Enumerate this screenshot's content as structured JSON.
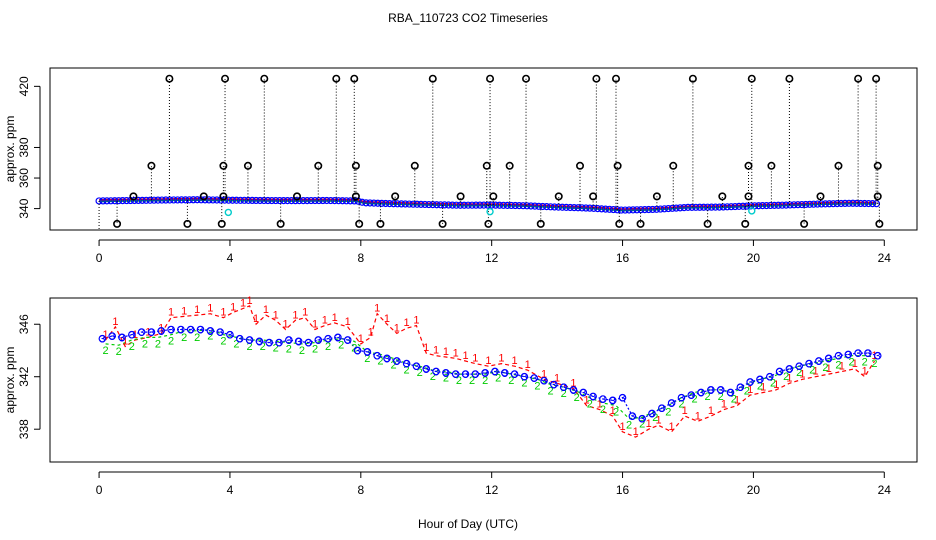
{
  "title": "RBA_110723  CO2 Timeseries",
  "xlabel": "Hour of Day (UTC)",
  "colors": {
    "series1": "#ff0000",
    "series2": "#00cc00",
    "series3": "#0000ff",
    "outlier": "#000000",
    "cyan": "#00cccc"
  },
  "chart_data": [
    {
      "type": "scatter",
      "title": "RBA_110723  CO2 Timeseries",
      "xlabel": "",
      "ylabel": "approx. ppm",
      "xlim": [
        -1.5,
        25
      ],
      "ylim": [
        326,
        432
      ],
      "xticks": [
        0,
        4,
        8,
        12,
        16,
        20,
        24
      ],
      "yticks": [
        340,
        360,
        380,
        420
      ],
      "xtick_labels": [
        "0",
        "4",
        "8",
        "12",
        "16",
        "20",
        "24"
      ],
      "ytick_labels": [
        "340",
        "360",
        "380",
        "420"
      ],
      "baseline": [
        [
          0.0,
          345.0
        ],
        [
          1.0,
          345.3
        ],
        [
          2.0,
          345.6
        ],
        [
          3.0,
          345.8
        ],
        [
          4.0,
          345.5
        ],
        [
          5.0,
          345.3
        ],
        [
          6.0,
          345.2
        ],
        [
          7.0,
          345.3
        ],
        [
          7.9,
          345.0
        ],
        [
          8.1,
          343.8
        ],
        [
          9.0,
          343.2
        ],
        [
          10.0,
          342.7
        ],
        [
          11.0,
          342.2
        ],
        [
          12.0,
          342.3
        ],
        [
          13.0,
          341.9
        ],
        [
          14.0,
          341.0
        ],
        [
          15.0,
          340.3
        ],
        [
          16.0,
          339.0
        ],
        [
          17.0,
          339.5
        ],
        [
          18.0,
          340.8
        ],
        [
          19.0,
          341.0
        ],
        [
          20.0,
          341.8
        ],
        [
          21.0,
          342.3
        ],
        [
          22.0,
          343.0
        ],
        [
          23.0,
          343.5
        ],
        [
          23.8,
          343.2
        ]
      ],
      "outliers_high": [
        2.15,
        3.85,
        5.05,
        7.25,
        7.8,
        10.2,
        11.95,
        13.05,
        15.2,
        15.8,
        18.15,
        19.95,
        21.1,
        23.2,
        23.75
      ],
      "outliers_mid": [
        1.6,
        3.8,
        4.55,
        6.7,
        7.85,
        9.65,
        11.85,
        12.55,
        14.7,
        15.85,
        17.55,
        19.85,
        20.55,
        22.6,
        23.8
      ],
      "outliers_low_mid": [
        1.05,
        3.2,
        3.8,
        6.05,
        7.85,
        9.05,
        11.05,
        12.05,
        14.05,
        15.1,
        17.05,
        19.05,
        19.85,
        22.05,
        23.8
      ],
      "outliers_bottom": [
        0.55,
        2.7,
        3.75,
        5.55,
        7.95,
        8.6,
        10.5,
        11.9,
        13.5,
        15.9,
        16.55,
        18.6,
        19.75,
        21.55,
        23.85
      ],
      "cyan_points": [
        [
          3.95,
          337.5
        ],
        [
          11.95,
          338.0
        ],
        [
          19.95,
          338.5
        ]
      ]
    },
    {
      "type": "scatter",
      "title": "",
      "xlabel": "Hour of Day (UTC)",
      "ylabel": "approx. ppm",
      "xlim": [
        -1.5,
        25
      ],
      "ylim": [
        335.5,
        348.0
      ],
      "xticks": [
        0,
        4,
        8,
        12,
        16,
        20,
        24
      ],
      "yticks": [
        338,
        342,
        346
      ],
      "xtick_labels": [
        "0",
        "4",
        "8",
        "12",
        "16",
        "20",
        "24"
      ],
      "ytick_labels": [
        "338",
        "342",
        "346"
      ],
      "series": [
        {
          "name": "1",
          "marker": "1",
          "color": "#ff0000",
          "points": [
            [
              0.2,
              344.8
            ],
            [
              0.5,
              345.8
            ],
            [
              0.8,
              344.3
            ],
            [
              1.1,
              344.8
            ],
            [
              1.5,
              345.0
            ],
            [
              1.9,
              345.3
            ],
            [
              2.2,
              346.5
            ],
            [
              2.6,
              346.6
            ],
            [
              3.0,
              346.7
            ],
            [
              3.4,
              346.8
            ],
            [
              3.8,
              346.5
            ],
            [
              4.1,
              346.9
            ],
            [
              4.4,
              347.2
            ],
            [
              4.6,
              347.4
            ],
            [
              4.8,
              346.0
            ],
            [
              5.1,
              346.7
            ],
            [
              5.4,
              346.3
            ],
            [
              5.7,
              345.6
            ],
            [
              6.0,
              346.3
            ],
            [
              6.3,
              346.5
            ],
            [
              6.6,
              345.6
            ],
            [
              6.9,
              345.9
            ],
            [
              7.2,
              346.1
            ],
            [
              7.6,
              345.8
            ],
            [
              8.0,
              344.5
            ],
            [
              8.3,
              345.0
            ],
            [
              8.5,
              346.8
            ],
            [
              8.8,
              346.0
            ],
            [
              9.1,
              345.3
            ],
            [
              9.4,
              345.7
            ],
            [
              9.7,
              345.9
            ],
            [
              10.0,
              343.8
            ],
            [
              10.3,
              343.6
            ],
            [
              10.6,
              343.5
            ],
            [
              10.9,
              343.4
            ],
            [
              11.2,
              343.2
            ],
            [
              11.5,
              343.0
            ],
            [
              11.9,
              342.8
            ],
            [
              12.3,
              343.0
            ],
            [
              12.7,
              342.8
            ],
            [
              13.1,
              342.5
            ],
            [
              13.6,
              341.8
            ],
            [
              14.0,
              341.5
            ],
            [
              14.5,
              341.1
            ],
            [
              14.9,
              339.8
            ],
            [
              15.3,
              339.5
            ],
            [
              15.7,
              339.0
            ],
            [
              16.0,
              337.8
            ],
            [
              16.4,
              337.4
            ],
            [
              16.8,
              338.0
            ],
            [
              17.1,
              338.3
            ],
            [
              17.5,
              337.8
            ],
            [
              17.9,
              339.0
            ],
            [
              18.3,
              338.6
            ],
            [
              18.7,
              339.0
            ],
            [
              19.1,
              339.5
            ],
            [
              19.5,
              339.8
            ],
            [
              19.9,
              340.6
            ],
            [
              20.3,
              340.8
            ],
            [
              20.7,
              341.0
            ],
            [
              21.1,
              341.5
            ],
            [
              21.5,
              341.8
            ],
            [
              21.9,
              342.0
            ],
            [
              22.3,
              342.2
            ],
            [
              22.7,
              342.4
            ],
            [
              23.1,
              342.6
            ],
            [
              23.4,
              342.0
            ],
            [
              23.7,
              343.2
            ]
          ]
        },
        {
          "name": "2",
          "marker": "2",
          "color": "#00cc00",
          "points": [
            [
              0.2,
              344.5
            ],
            [
              0.6,
              344.4
            ],
            [
              1.0,
              344.8
            ],
            [
              1.4,
              345.0
            ],
            [
              1.8,
              345.0
            ],
            [
              2.2,
              345.2
            ],
            [
              2.6,
              345.5
            ],
            [
              3.0,
              345.5
            ],
            [
              3.4,
              345.6
            ],
            [
              3.8,
              345.2
            ],
            [
              4.2,
              345.0
            ],
            [
              4.6,
              344.8
            ],
            [
              5.0,
              344.8
            ],
            [
              5.4,
              344.7
            ],
            [
              5.8,
              344.6
            ],
            [
              6.2,
              344.5
            ],
            [
              6.6,
              344.6
            ],
            [
              7.0,
              344.8
            ],
            [
              7.4,
              344.9
            ],
            [
              7.8,
              344.7
            ],
            [
              8.2,
              343.9
            ],
            [
              8.6,
              343.7
            ],
            [
              9.0,
              343.4
            ],
            [
              9.4,
              343.0
            ],
            [
              9.8,
              342.8
            ],
            [
              10.2,
              342.5
            ],
            [
              10.6,
              342.4
            ],
            [
              11.0,
              342.2
            ],
            [
              11.4,
              342.2
            ],
            [
              11.8,
              342.2
            ],
            [
              12.2,
              342.4
            ],
            [
              12.6,
              342.2
            ],
            [
              13.0,
              342.0
            ],
            [
              13.4,
              341.8
            ],
            [
              13.8,
              341.4
            ],
            [
              14.2,
              341.2
            ],
            [
              14.6,
              340.9
            ],
            [
              15.0,
              340.4
            ],
            [
              15.4,
              340.0
            ],
            [
              15.8,
              339.8
            ],
            [
              16.2,
              338.8
            ],
            [
              16.6,
              338.9
            ],
            [
              17.0,
              339.4
            ],
            [
              17.4,
              339.8
            ],
            [
              17.8,
              340.4
            ],
            [
              18.2,
              340.8
            ],
            [
              18.6,
              341.0
            ],
            [
              19.0,
              341.0
            ],
            [
              19.4,
              340.8
            ],
            [
              19.8,
              341.4
            ],
            [
              20.2,
              341.8
            ],
            [
              20.6,
              342.0
            ],
            [
              21.0,
              342.5
            ],
            [
              21.4,
              342.8
            ],
            [
              21.8,
              343.0
            ],
            [
              22.2,
              343.2
            ],
            [
              22.6,
              343.4
            ],
            [
              23.0,
              343.6
            ],
            [
              23.4,
              343.6
            ],
            [
              23.7,
              343.5
            ]
          ]
        },
        {
          "name": "3",
          "marker": "3",
          "color": "#0000ff",
          "points": [
            [
              0.1,
              344.9
            ],
            [
              0.4,
              345.1
            ],
            [
              0.7,
              345.0
            ],
            [
              1.0,
              345.2
            ],
            [
              1.3,
              345.4
            ],
            [
              1.6,
              345.4
            ],
            [
              1.9,
              345.5
            ],
            [
              2.2,
              345.6
            ],
            [
              2.5,
              345.6
            ],
            [
              2.8,
              345.6
            ],
            [
              3.1,
              345.6
            ],
            [
              3.4,
              345.5
            ],
            [
              3.7,
              345.4
            ],
            [
              4.0,
              345.2
            ],
            [
              4.3,
              344.9
            ],
            [
              4.6,
              344.8
            ],
            [
              4.9,
              344.7
            ],
            [
              5.2,
              344.6
            ],
            [
              5.5,
              344.6
            ],
            [
              5.8,
              344.8
            ],
            [
              6.1,
              344.7
            ],
            [
              6.4,
              344.6
            ],
            [
              6.7,
              344.8
            ],
            [
              7.0,
              344.9
            ],
            [
              7.3,
              345.0
            ],
            [
              7.6,
              344.8
            ],
            [
              7.9,
              344.0
            ],
            [
              8.2,
              343.9
            ],
            [
              8.5,
              343.6
            ],
            [
              8.8,
              343.4
            ],
            [
              9.1,
              343.2
            ],
            [
              9.4,
              343.0
            ],
            [
              9.7,
              342.8
            ],
            [
              10.0,
              342.6
            ],
            [
              10.3,
              342.4
            ],
            [
              10.6,
              342.3
            ],
            [
              10.9,
              342.2
            ],
            [
              11.2,
              342.2
            ],
            [
              11.5,
              342.2
            ],
            [
              11.8,
              342.3
            ],
            [
              12.1,
              342.4
            ],
            [
              12.4,
              342.3
            ],
            [
              12.7,
              342.2
            ],
            [
              13.0,
              342.0
            ],
            [
              13.3,
              341.9
            ],
            [
              13.6,
              341.7
            ],
            [
              13.9,
              341.4
            ],
            [
              14.2,
              341.2
            ],
            [
              14.5,
              341.0
            ],
            [
              14.8,
              340.8
            ],
            [
              15.1,
              340.5
            ],
            [
              15.4,
              340.3
            ],
            [
              15.7,
              340.2
            ],
            [
              16.0,
              340.4
            ],
            [
              16.3,
              339.0
            ],
            [
              16.6,
              338.8
            ],
            [
              16.9,
              339.2
            ],
            [
              17.2,
              339.6
            ],
            [
              17.5,
              340.0
            ],
            [
              17.8,
              340.4
            ],
            [
              18.1,
              340.6
            ],
            [
              18.4,
              340.8
            ],
            [
              18.7,
              341.0
            ],
            [
              19.0,
              341.0
            ],
            [
              19.3,
              340.8
            ],
            [
              19.6,
              341.2
            ],
            [
              19.9,
              341.6
            ],
            [
              20.2,
              341.8
            ],
            [
              20.5,
              342.0
            ],
            [
              20.8,
              342.4
            ],
            [
              21.1,
              342.6
            ],
            [
              21.4,
              342.8
            ],
            [
              21.7,
              343.0
            ],
            [
              22.0,
              343.2
            ],
            [
              22.3,
              343.4
            ],
            [
              22.6,
              343.6
            ],
            [
              22.9,
              343.7
            ],
            [
              23.2,
              343.8
            ],
            [
              23.5,
              343.8
            ],
            [
              23.8,
              343.6
            ]
          ]
        }
      ]
    }
  ]
}
